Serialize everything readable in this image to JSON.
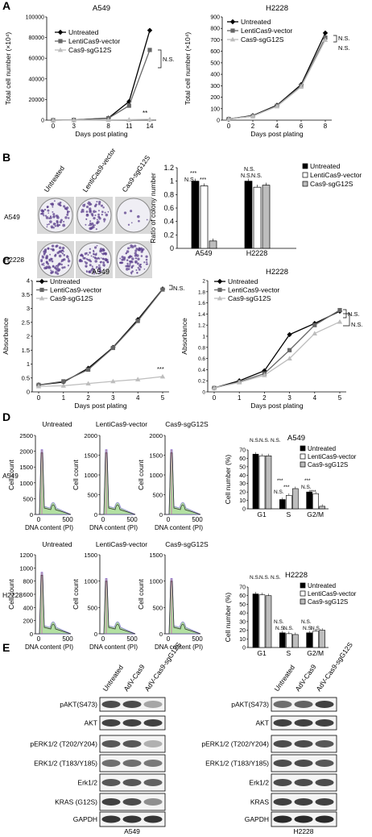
{
  "panels": {
    "A": "A",
    "B": "B",
    "C": "C",
    "D": "D",
    "E": "E"
  },
  "legend": {
    "untreated": "Untreated",
    "lenti": "LentiCas9-vector",
    "sg": "Cas9-sgG12S"
  },
  "labels": {
    "ns": "N.S.",
    "stars3": "***",
    "stars2": "**",
    "days_post_plating": "Days post plating",
    "total_cell_number_a549": "Total cell number (×10⁴)",
    "total_cell_number_h2228": "Total cell number (×10⁴)",
    "ratio_colony": "Ratio of colony number",
    "absorbance": "Absorbance",
    "cell_count": "Cell count",
    "dna_content": "DNA content (PI)",
    "cell_number_pct": "Cell number (%)",
    "a549": "A549",
    "h2228": "H2228"
  },
  "chart_data": [
    {
      "id": "A_A549",
      "type": "line",
      "title": "A549",
      "xlabel": "Days post plating",
      "ylabel": "Total cell number (×10⁴)",
      "x": [
        0,
        3,
        8,
        11,
        14
      ],
      "ylim": [
        0,
        100000
      ],
      "yticks": [
        0,
        20000,
        40000,
        60000,
        80000,
        100000
      ],
      "series": [
        {
          "name": "Untreated",
          "values": [
            0,
            200,
            2000,
            18000,
            87000
          ]
        },
        {
          "name": "LentiCas9-vector",
          "values": [
            0,
            200,
            1800,
            14000,
            68000
          ]
        },
        {
          "name": "Cas9-sgG12S",
          "values": [
            0,
            100,
            300,
            500,
            800
          ]
        }
      ]
    },
    {
      "id": "A_H2228",
      "type": "line",
      "title": "H2228",
      "xlabel": "Days post plating",
      "ylabel": "Total cell number (×10⁴)",
      "x": [
        0,
        2,
        4,
        6,
        8
      ],
      "ylim": [
        0,
        900
      ],
      "yticks": [
        0,
        100,
        200,
        300,
        400,
        500,
        600,
        700,
        800,
        900
      ],
      "series": [
        {
          "name": "Untreated",
          "values": [
            10,
            40,
            130,
            310,
            760
          ]
        },
        {
          "name": "LentiCas9-vector",
          "values": [
            10,
            35,
            125,
            300,
            720
          ]
        },
        {
          "name": "Cas9-sgG12S",
          "values": [
            10,
            35,
            120,
            290,
            700
          ]
        }
      ]
    },
    {
      "id": "B_colony",
      "type": "bar",
      "ylabel": "Ratio of colony number",
      "categories": [
        "A549",
        "H2228"
      ],
      "ylim": [
        0,
        1.2
      ],
      "yticks": [
        0,
        0.2,
        0.4,
        0.6,
        0.8,
        1,
        1.2
      ],
      "series": [
        {
          "name": "Untreated",
          "values": [
            1.0,
            1.0
          ]
        },
        {
          "name": "LentiCas9-vector",
          "values": [
            0.93,
            0.91
          ]
        },
        {
          "name": "Cas9-sgG12S",
          "values": [
            0.11,
            0.94
          ]
        }
      ]
    },
    {
      "id": "C_A549",
      "type": "line",
      "title": "A549",
      "xlabel": "Days post plating",
      "ylabel": "Absorbance",
      "x": [
        0,
        1,
        2,
        3,
        4,
        5
      ],
      "ylim": [
        0,
        4
      ],
      "yticks": [
        0,
        0.5,
        1,
        1.5,
        2,
        2.5,
        3,
        3.5,
        4
      ],
      "series": [
        {
          "name": "Untreated",
          "values": [
            0.25,
            0.35,
            0.85,
            1.6,
            2.6,
            3.7
          ]
        },
        {
          "name": "LentiCas9-vector",
          "values": [
            0.25,
            0.38,
            0.8,
            1.58,
            2.55,
            3.68
          ]
        },
        {
          "name": "Cas9-sgG12S",
          "values": [
            0.2,
            0.22,
            0.3,
            0.38,
            0.45,
            0.55
          ]
        }
      ]
    },
    {
      "id": "C_H2228",
      "type": "line",
      "title": "H2228",
      "xlabel": "Days post plating",
      "ylabel": "Absorbance",
      "x": [
        0,
        1,
        2,
        3,
        4,
        5
      ],
      "ylim": [
        0,
        2
      ],
      "yticks": [
        0,
        0.2,
        0.4,
        0.6,
        0.8,
        1,
        1.2,
        1.4,
        1.6,
        1.8,
        2
      ],
      "series": [
        {
          "name": "Untreated",
          "values": [
            0.07,
            0.2,
            0.38,
            1.03,
            1.23,
            1.45
          ]
        },
        {
          "name": "LentiCas9-vector",
          "values": [
            0.07,
            0.18,
            0.33,
            0.75,
            1.2,
            1.47
          ]
        },
        {
          "name": "Cas9-sgG12S",
          "values": [
            0.07,
            0.17,
            0.3,
            0.6,
            1.05,
            1.26
          ]
        }
      ]
    },
    {
      "id": "D_A549",
      "type": "bar",
      "title": "A549",
      "ylabel": "Cell number (%)",
      "categories": [
        "G1",
        "S",
        "G2/M"
      ],
      "ylim": [
        0,
        70
      ],
      "yticks": [
        0,
        10,
        20,
        30,
        40,
        50,
        60,
        70
      ],
      "series": [
        {
          "name": "Untreated",
          "values": [
            65,
            11,
            20
          ]
        },
        {
          "name": "LentiCas9-vector",
          "values": [
            63,
            16,
            18
          ]
        },
        {
          "name": "Cas9-sgG12S",
          "values": [
            63,
            24,
            3
          ]
        }
      ]
    },
    {
      "id": "D_H2228",
      "type": "bar",
      "title": "H2228",
      "ylabel": "Cell number (%)",
      "categories": [
        "G1",
        "S",
        "G2/M"
      ],
      "ylim": [
        0,
        70
      ],
      "yticks": [
        0,
        10,
        20,
        30,
        40,
        50,
        60,
        70
      ],
      "series": [
        {
          "name": "Untreated",
          "values": [
            62,
            17,
            17
          ]
        },
        {
          "name": "LentiCas9-vector",
          "values": [
            61,
            16,
            19
          ]
        },
        {
          "name": "Cas9-sgG12S",
          "values": [
            60,
            15,
            20
          ]
        }
      ]
    }
  ],
  "flow": {
    "col_labels": [
      "Untreated",
      "LentiCas9-vector",
      "Cas9-sgG12S"
    ],
    "rows": [
      {
        "label": "A549",
        "max_ticks": [
          "2500",
          "2000",
          "1500",
          "1000",
          "500",
          "0"
        ],
        "max_ticks_2": [
          "2000",
          "1500",
          "1000",
          "500",
          "0"
        ],
        "max_ticks_3": [
          "2000",
          "1500",
          "1000",
          "500",
          "0"
        ]
      },
      {
        "label": "H2228",
        "max_ticks": [
          "1200",
          "1000",
          "800",
          "600",
          "400",
          "200",
          "0"
        ],
        "max_ticks_2": [
          "1500",
          "1000",
          "500",
          "0"
        ],
        "max_ticks_3": [
          "1500",
          "1000",
          "500",
          "0"
        ]
      }
    ],
    "x_ticks": [
      "0",
      "500"
    ]
  },
  "blots": {
    "lane_labels": [
      "Untreated",
      "AdV-Cas9",
      "AdV-Cas9-sgG12S"
    ],
    "a549_rows": [
      "pAKT(S473)",
      "AKT",
      "pERK1/2 (T202/Y204)",
      "ERK1/2 (T183/Y185)",
      "Erk1/2",
      "KRAS (G12S)",
      "GAPDH"
    ],
    "h2228_rows": [
      "pAKT(S473)",
      "AKT",
      "pERK1/2 (T202/Y204)",
      "ERK1/2 (T183/Y185)",
      "Erk1/2",
      "KRAS",
      "GAPDH"
    ],
    "a549_intensity": [
      [
        0.75,
        0.75,
        0.35
      ],
      [
        0.8,
        0.8,
        0.8
      ],
      [
        0.7,
        0.7,
        0.3
      ],
      [
        0.6,
        0.6,
        0.55
      ],
      [
        0.7,
        0.7,
        0.65
      ],
      [
        0.8,
        0.75,
        0.45
      ],
      [
        0.85,
        0.85,
        0.85
      ]
    ],
    "h2228_intensity": [
      [
        0.6,
        0.65,
        0.8
      ],
      [
        0.8,
        0.8,
        0.8
      ],
      [
        0.75,
        0.75,
        0.7
      ],
      [
        0.75,
        0.75,
        0.7
      ],
      [
        0.75,
        0.75,
        0.75
      ],
      [
        0.8,
        0.8,
        0.8
      ],
      [
        0.9,
        0.9,
        0.9
      ]
    ]
  },
  "colors": {
    "untreated": "#000000",
    "lenti": "#666666",
    "sg": "#bdbdbd",
    "colony_purple": "#5b3f8c"
  }
}
